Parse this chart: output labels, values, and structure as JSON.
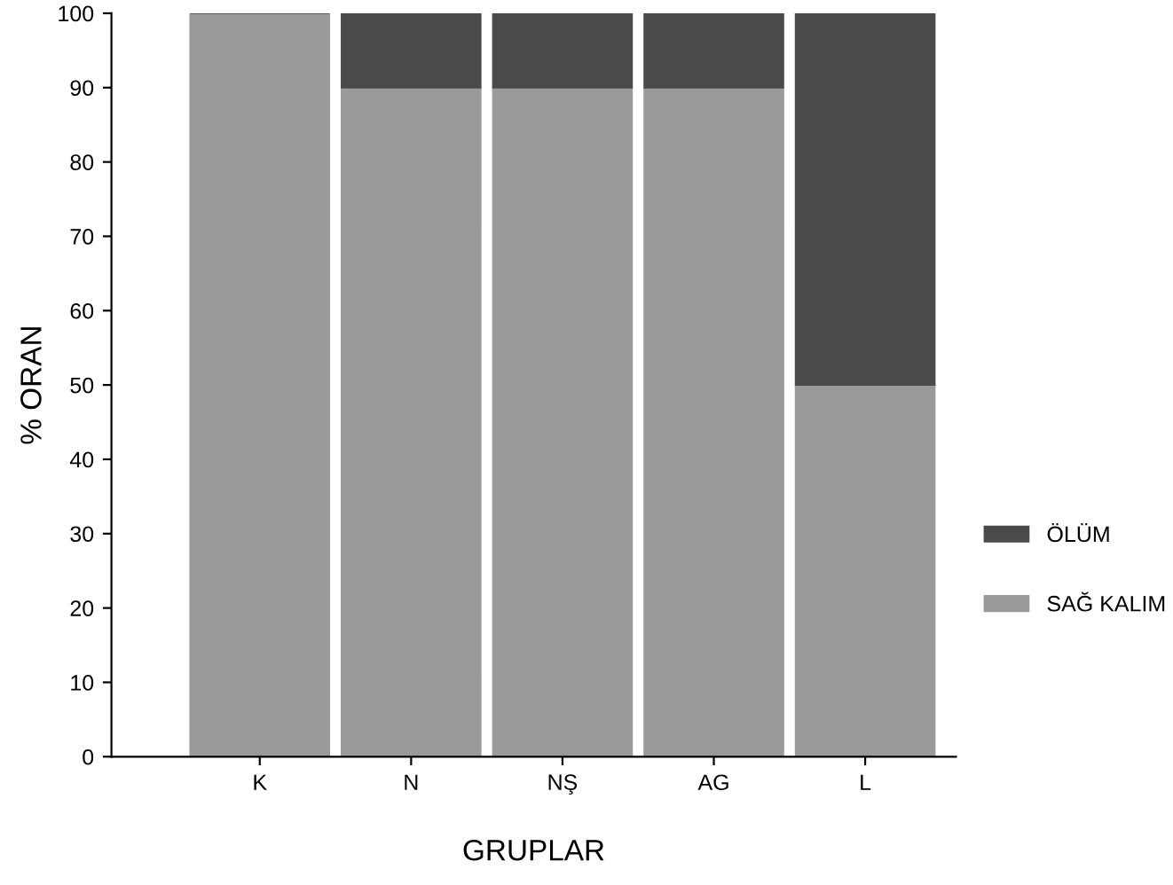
{
  "chart_data": {
    "type": "bar",
    "stacked": true,
    "xlabel": "GRUPLAR",
    "ylabel": "% ORAN",
    "categories": [
      "K",
      "N",
      "NŞ",
      "AG",
      "L"
    ],
    "series": [
      {
        "name": "SAĞ KALIM",
        "color": "#9a9a9a",
        "values": [
          100,
          90,
          90,
          90,
          50
        ]
      },
      {
        "name": "ÖLÜM",
        "color": "#4a4a4a",
        "values": [
          0,
          10,
          10,
          10,
          50
        ]
      }
    ],
    "ylim": [
      0,
      100
    ],
    "yticks": [
      0,
      10,
      20,
      30,
      40,
      50,
      60,
      70,
      80,
      90,
      100
    ],
    "grid": false,
    "legend": "right"
  }
}
